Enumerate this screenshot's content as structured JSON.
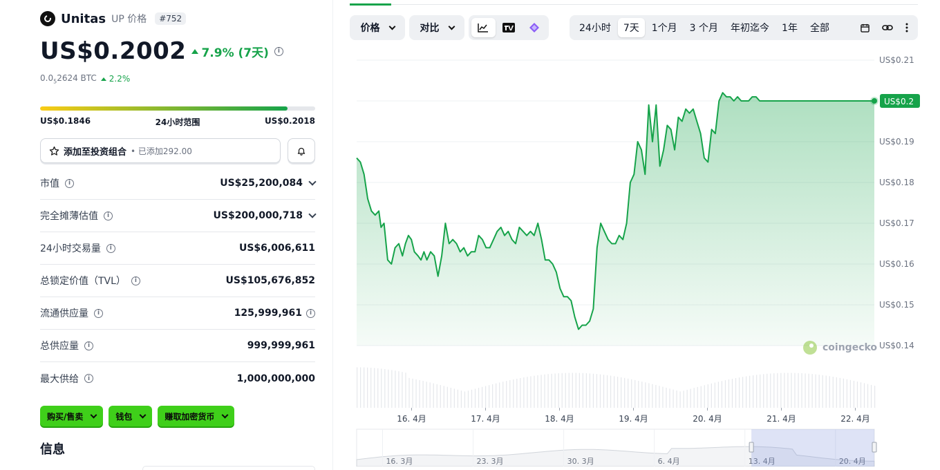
{
  "coin": {
    "name": "Unitas",
    "symbol_label": "UP 价格",
    "rank": "#752",
    "price": "US$0.2002",
    "change_7d": "7.9% (7天)",
    "btc_price_prefix": "0.0",
    "btc_price_sub": "5",
    "btc_price_suffix": "2624 BTC",
    "btc_change": "2.2%"
  },
  "range_24h": {
    "low": "US$0.1846",
    "label": "24小时范围",
    "high": "US$0.2018",
    "fill": 0.9
  },
  "portfolio": {
    "label": "添加至投资组合",
    "sub": "• 已添加292.00"
  },
  "stats": [
    {
      "label": "市值",
      "value": "US$25,200,084",
      "expand": true
    },
    {
      "label": "完全摊薄估值",
      "value": "US$200,000,718",
      "expand": true
    },
    {
      "label": "24小时交易量",
      "value": "US$6,006,611",
      "expand": false
    },
    {
      "label": "总锁定价值（TVL）",
      "value": "US$105,676,852",
      "expand": false
    },
    {
      "label": "流通供应量",
      "value": "125,999,961",
      "expand": false,
      "value_info": true
    },
    {
      "label": "总供应量",
      "value": "999,999,961",
      "expand": false
    },
    {
      "label": "最大供给",
      "value": "1,000,000,000",
      "expand": false
    }
  ],
  "actions": [
    {
      "label": "购买/售卖"
    },
    {
      "label": "钱包"
    },
    {
      "label": "赚取加密货币"
    }
  ],
  "info_title": "信息",
  "toolbar": {
    "price_btn": "价格",
    "compare_btn": "对比",
    "ranges": [
      "24小时",
      "7天",
      "1个月",
      "3 个月",
      "年初迄今",
      "1年",
      "全部"
    ],
    "active_range": "7天"
  },
  "colors": {
    "accent_green": "#16a34a",
    "button_green": "#3fcf1a"
  },
  "chart_data": {
    "type": "area",
    "title": "",
    "ylim": [
      0.14,
      0.21
    ],
    "yticks": [
      "US$0.21",
      "US$0.2",
      "US$0.19",
      "US$0.18",
      "US$0.17",
      "US$0.16",
      "US$0.15",
      "US$0.14"
    ],
    "current_label": "US$0.2",
    "x_labels": [
      "16. 4月",
      "17. 4月",
      "18. 4月",
      "19. 4月",
      "20. 4月",
      "21. 4月",
      "22. 4月"
    ],
    "x_days": [
      0.743,
      1.743,
      2.743,
      3.743,
      4.743,
      5.743,
      6.743
    ],
    "xlim": [
      0,
      7
    ],
    "series": [
      {
        "name": "",
        "x": [
          0,
          0.05,
          0.1,
          0.15,
          0.2,
          0.25,
          0.3,
          0.33,
          0.37,
          0.42,
          0.47,
          0.52,
          0.57,
          0.62,
          0.66,
          0.7,
          0.74,
          0.78,
          0.83,
          0.87,
          0.91,
          0.95,
          1.0,
          1.05,
          1.1,
          1.15,
          1.2,
          1.25,
          1.3,
          1.35,
          1.4,
          1.45,
          1.5,
          1.55,
          1.6,
          1.65,
          1.7,
          1.75,
          1.8,
          1.85,
          1.9,
          1.95,
          2.0,
          2.05,
          2.1,
          2.15,
          2.2,
          2.25,
          2.3,
          2.35,
          2.4,
          2.45,
          2.5,
          2.55,
          2.6,
          2.65,
          2.7,
          2.75,
          2.8,
          2.85,
          2.9,
          2.95,
          3.0,
          3.05,
          3.1,
          3.15,
          3.2,
          3.25,
          3.3,
          3.35,
          3.4,
          3.45,
          3.5,
          3.55,
          3.6,
          3.65,
          3.7,
          3.75,
          3.8,
          3.85,
          3.9,
          3.95,
          4.0,
          4.05,
          4.1,
          4.15,
          4.2,
          4.25,
          4.3,
          4.35,
          4.4,
          4.45,
          4.5,
          4.55,
          4.6,
          4.65,
          4.7,
          4.75,
          4.8,
          4.85,
          4.9,
          4.95,
          5.0,
          5.05,
          5.1,
          5.15,
          5.2,
          5.25,
          5.3,
          5.35,
          5.4,
          5.45,
          5.5,
          5.55,
          5.6,
          5.65,
          5.7,
          5.75,
          5.8,
          5.85,
          5.9,
          5.95,
          6.0,
          6.05,
          6.1,
          6.15,
          6.2,
          6.25,
          6.3,
          6.35,
          6.4,
          6.45,
          6.5,
          6.55,
          6.6,
          6.65,
          6.7,
          6.75,
          6.8,
          6.85,
          6.9,
          6.95,
          7.0
        ],
        "values": [
          0.186,
          0.185,
          0.182,
          0.176,
          0.173,
          0.172,
          0.173,
          0.169,
          0.17,
          0.161,
          0.16,
          0.164,
          0.165,
          0.162,
          0.165,
          0.167,
          0.166,
          0.163,
          0.162,
          0.161,
          0.163,
          0.161,
          0.163,
          0.162,
          0.157,
          0.162,
          0.17,
          0.165,
          0.166,
          0.165,
          0.163,
          0.164,
          0.162,
          0.163,
          0.163,
          0.167,
          0.166,
          0.164,
          0.164,
          0.166,
          0.168,
          0.169,
          0.167,
          0.168,
          0.166,
          0.165,
          0.169,
          0.168,
          0.167,
          0.168,
          0.167,
          0.17,
          0.166,
          0.161,
          0.161,
          0.16,
          0.158,
          0.154,
          0.152,
          0.152,
          0.151,
          0.147,
          0.144,
          0.145,
          0.145,
          0.146,
          0.149,
          0.164,
          0.17,
          0.168,
          0.166,
          0.165,
          0.165,
          0.167,
          0.166,
          0.17,
          0.18,
          0.182,
          0.19,
          0.188,
          0.182,
          0.199,
          0.19,
          0.199,
          0.184,
          0.188,
          0.194,
          0.193,
          0.188,
          0.196,
          0.195,
          0.198,
          0.197,
          0.198,
          0.195,
          0.192,
          0.186,
          0.185,
          0.193,
          0.192,
          0.2,
          0.202,
          0.201,
          0.201,
          0.2,
          0.201,
          0.2,
          0.2,
          0.2,
          0.201,
          0.201,
          0.2,
          0.2,
          0.2,
          0.2,
          0.2,
          0.2,
          0.2,
          0.2,
          0.2,
          0.2,
          0.2,
          0.2,
          0.2,
          0.2,
          0.2,
          0.2,
          0.2,
          0.2,
          0.2,
          0.2,
          0.2,
          0.2,
          0.2,
          0.2,
          0.2,
          0.2,
          0.2,
          0.2,
          0.2,
          0.2,
          0.2,
          0.2
        ]
      }
    ],
    "navigator_labels": [
      "16. 3月",
      "23. 3月",
      "30. 3月",
      "6. 4月",
      "13. 4月",
      "20. 4月"
    ],
    "navigator_days": [
      0,
      7,
      14,
      21,
      28,
      35
    ],
    "navigator_xlim": [
      -2,
      38
    ],
    "navigator_window": [
      28.5,
      38
    ],
    "watermark": "coingecko",
    "grid": true
  }
}
